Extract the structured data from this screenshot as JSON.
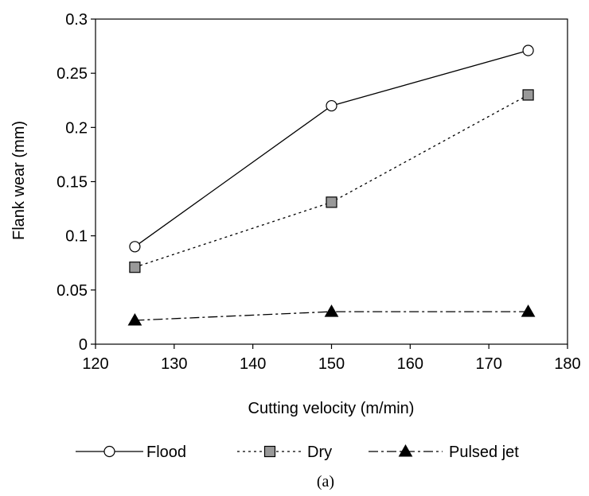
{
  "chart_data": {
    "type": "line",
    "title": "",
    "xlabel": "Cutting velocity (m/min)",
    "ylabel": "Flank wear (mm)",
    "xlim": [
      120,
      180
    ],
    "ylim": [
      0,
      0.3
    ],
    "xticks": [
      120,
      130,
      140,
      150,
      160,
      170,
      180
    ],
    "xtick_labels": [
      "120",
      "130",
      "140",
      "150",
      "160",
      "170",
      "180"
    ],
    "yticks": [
      0,
      0.05,
      0.1,
      0.15,
      0.2,
      0.25,
      0.3
    ],
    "ytick_labels": [
      "0",
      "0.05",
      "0.1",
      "0.15",
      "0.2",
      "0.25",
      "0.3"
    ],
    "grid": false,
    "legend_position": "bottom",
    "caption": "(a)",
    "series": [
      {
        "name": "Flood",
        "x": [
          125,
          150,
          175
        ],
        "values": [
          0.09,
          0.22,
          0.271
        ],
        "line_style": "solid",
        "marker": "circle",
        "marker_fill": "#ffffff"
      },
      {
        "name": "Dry",
        "x": [
          125,
          150,
          175
        ],
        "values": [
          0.071,
          0.131,
          0.23
        ],
        "line_style": "dotted",
        "marker": "square",
        "marker_fill": "#999999"
      },
      {
        "name": "Pulsed jet",
        "x": [
          125,
          150,
          175
        ],
        "values": [
          0.022,
          0.03,
          0.03
        ],
        "line_style": "dash-dot",
        "marker": "triangle",
        "marker_fill": "#000000"
      }
    ]
  }
}
